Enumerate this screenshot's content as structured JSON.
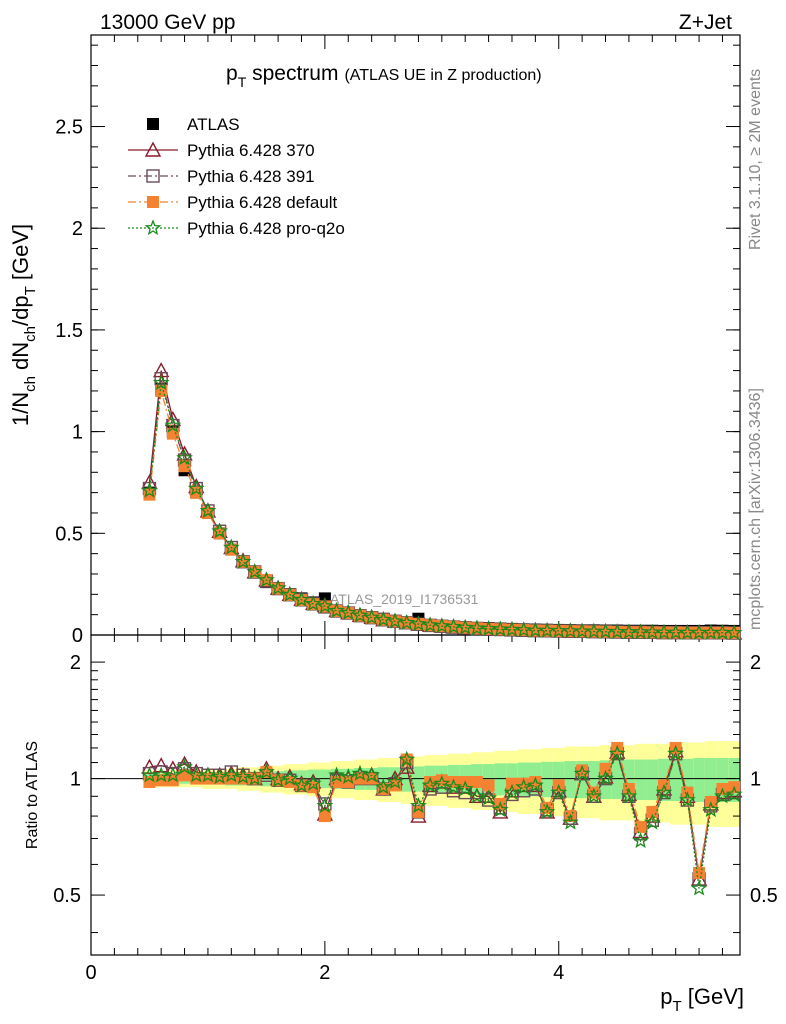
{
  "header": {
    "left": "13000 GeV pp",
    "right": "Z+Jet"
  },
  "title": {
    "main_p": "p",
    "main_sub": "T",
    "main_rest": " spectrum",
    "extra": "(ATLAS UE in Z production)"
  },
  "side_labels": {
    "rivet": "Rivet 3.1.10, ≥ 2M events",
    "mcplots": "mcplots.cern.ch [arXiv:1306.3436]"
  },
  "watermark": "ATLAS_2019_I1736531",
  "ylabel_top": {
    "a": "1/N",
    "a_sub": "ch",
    "b": " dN",
    "b_sub": "ch",
    "c": "/dp",
    "c_sub": "T",
    "d": " [GeV]"
  },
  "ylabel_bottom": "Ratio to ATLAS",
  "xlabel": {
    "p": "p",
    "sub": "T",
    "rest": " [GeV]"
  },
  "legend": [
    {
      "label": "ATLAS",
      "color": "#000000",
      "marker": "square-filled",
      "line": "none"
    },
    {
      "label": "Pythia 6.428 370",
      "color": "#8b1a2b",
      "marker": "triangle-open",
      "line": "solid"
    },
    {
      "label": "Pythia 6.428 391",
      "color": "#6b4a5a",
      "marker": "square-open",
      "line": "dashdot"
    },
    {
      "label": "Pythia 6.428 default",
      "color": "#f58231",
      "marker": "square-filled",
      "line": "dashdot"
    },
    {
      "label": "Pythia 6.428 pro-q2o",
      "color": "#1a8a1a",
      "marker": "star-open",
      "line": "dotted"
    }
  ],
  "chart_data": [
    {
      "type": "scatter",
      "panel": "main",
      "title": "pT spectrum (ATLAS UE in Z production)",
      "xlabel": "pT [GeV]",
      "ylabel": "1/Nch dNch/dpT [GeV]",
      "xlim": [
        0,
        5.55
      ],
      "ylim": [
        0,
        2.95
      ],
      "yticks": [
        0,
        0.5,
        1,
        1.5,
        2,
        2.5
      ],
      "ytick_labels": [
        "0",
        "0.5",
        "1",
        "1.5",
        "2",
        "2.5"
      ],
      "x": [
        0.5,
        0.6,
        0.7,
        0.8,
        0.9,
        1.0,
        1.1,
        1.2,
        1.3,
        1.4,
        1.5,
        1.6,
        1.7,
        1.8,
        1.9,
        2.0,
        2.1,
        2.2,
        2.3,
        2.4,
        2.5,
        2.6,
        2.7,
        2.8,
        2.9,
        3.0,
        3.1,
        3.2,
        3.3,
        3.4,
        3.5,
        3.6,
        3.7,
        3.8,
        3.9,
        4.0,
        4.1,
        4.2,
        4.3,
        4.4,
        4.5,
        4.6,
        4.7,
        4.8,
        4.9,
        5.0,
        5.1,
        5.2,
        5.3,
        5.4,
        5.5
      ],
      "series": [
        {
          "name": "ATLAS",
          "values": [
            0.7,
            1.21,
            1.0,
            0.81,
            0.7,
            0.6,
            0.5,
            0.42,
            0.36,
            0.31,
            0.26,
            0.23,
            0.2,
            0.18,
            0.16,
            0.18,
            0.12,
            0.11,
            0.095,
            0.085,
            0.08,
            0.07,
            0.06,
            0.08,
            0.05,
            0.045,
            0.042,
            0.038,
            0.035,
            0.034,
            0.032,
            0.03,
            0.028,
            0.027,
            0.026,
            0.025,
            0.024,
            0.023,
            0.023,
            0.022,
            0.022,
            0.021,
            0.021,
            0.021,
            0.02,
            0.02,
            0.02,
            0.02,
            0.022,
            0.021,
            0.02
          ]
        },
        {
          "name": "Pythia 6.428 370",
          "values": [
            0.75,
            1.3,
            1.06,
            0.89,
            0.73,
            0.61,
            0.51,
            0.43,
            0.365,
            0.31,
            0.27,
            0.23,
            0.2,
            0.175,
            0.155,
            0.145,
            0.12,
            0.11,
            0.097,
            0.087,
            0.075,
            0.068,
            0.06,
            0.054,
            0.048,
            0.044,
            0.04,
            0.036,
            0.033,
            0.03,
            0.028,
            0.026,
            0.024,
            0.022,
            0.021,
            0.02,
            0.019,
            0.018,
            0.017,
            0.016,
            0.015,
            0.014,
            0.014,
            0.013,
            0.012,
            0.012,
            0.011,
            0.011,
            0.011,
            0.011,
            0.01
          ]
        },
        {
          "name": "Pythia 6.428 391",
          "values": [
            0.72,
            1.26,
            1.03,
            0.86,
            0.72,
            0.61,
            0.51,
            0.43,
            0.36,
            0.31,
            0.265,
            0.228,
            0.198,
            0.173,
            0.153,
            0.138,
            0.118,
            0.108,
            0.095,
            0.085,
            0.075,
            0.067,
            0.06,
            0.053,
            0.047,
            0.043,
            0.039,
            0.035,
            0.032,
            0.029,
            0.027,
            0.025,
            0.023,
            0.022,
            0.021,
            0.02,
            0.019,
            0.018,
            0.017,
            0.016,
            0.015,
            0.014,
            0.014,
            0.013,
            0.012,
            0.012,
            0.011,
            0.011,
            0.011,
            0.011,
            0.01
          ]
        },
        {
          "name": "Pythia 6.428 default",
          "values": [
            0.69,
            1.2,
            0.99,
            0.83,
            0.7,
            0.6,
            0.5,
            0.42,
            0.36,
            0.31,
            0.27,
            0.228,
            0.197,
            0.172,
            0.152,
            0.14,
            0.118,
            0.108,
            0.095,
            0.085,
            0.075,
            0.067,
            0.06,
            0.054,
            0.048,
            0.044,
            0.04,
            0.036,
            0.033,
            0.03,
            0.028,
            0.026,
            0.024,
            0.022,
            0.021,
            0.02,
            0.019,
            0.018,
            0.017,
            0.016,
            0.015,
            0.014,
            0.014,
            0.013,
            0.012,
            0.012,
            0.011,
            0.011,
            0.011,
            0.011,
            0.01
          ]
        },
        {
          "name": "Pythia 6.428 pro-q2o",
          "values": [
            0.71,
            1.24,
            1.03,
            0.87,
            0.72,
            0.61,
            0.51,
            0.43,
            0.36,
            0.31,
            0.27,
            0.23,
            0.198,
            0.173,
            0.153,
            0.142,
            0.119,
            0.109,
            0.096,
            0.086,
            0.075,
            0.067,
            0.06,
            0.054,
            0.048,
            0.044,
            0.04,
            0.036,
            0.033,
            0.03,
            0.028,
            0.026,
            0.024,
            0.022,
            0.021,
            0.02,
            0.019,
            0.018,
            0.017,
            0.016,
            0.015,
            0.014,
            0.014,
            0.013,
            0.012,
            0.012,
            0.011,
            0.011,
            0.011,
            0.011,
            0.01
          ]
        }
      ]
    },
    {
      "type": "scatter",
      "panel": "ratio",
      "xlabel": "pT [GeV]",
      "ylabel": "Ratio to ATLAS",
      "xlim": [
        0,
        5.55
      ],
      "ylim": [
        0.35,
        2.35
      ],
      "yticks": [
        0.5,
        1,
        2
      ],
      "ytick_labels": [
        "0.5",
        "1",
        "2"
      ],
      "xticks": [
        0,
        2,
        4
      ],
      "xtick_labels": [
        "0",
        "2",
        "4"
      ],
      "bands": {
        "x": [
          0.5,
          0.6,
          0.7,
          0.8,
          0.9,
          1.0,
          1.1,
          1.2,
          1.3,
          1.4,
          1.5,
          1.6,
          1.7,
          1.8,
          1.9,
          2.0,
          2.1,
          2.2,
          2.3,
          2.4,
          2.5,
          2.6,
          2.7,
          2.8,
          2.9,
          3.0,
          3.1,
          3.2,
          3.3,
          3.4,
          3.5,
          3.6,
          3.7,
          3.8,
          3.9,
          4.0,
          4.1,
          4.2,
          4.3,
          4.4,
          4.5,
          4.6,
          4.7,
          4.8,
          4.9,
          5.0,
          5.1,
          5.2,
          5.3,
          5.4,
          5.5
        ],
        "inner_halfwidth": [
          0.03,
          0.03,
          0.03,
          0.03,
          0.03,
          0.035,
          0.035,
          0.04,
          0.04,
          0.04,
          0.045,
          0.045,
          0.05,
          0.05,
          0.055,
          0.055,
          0.06,
          0.06,
          0.065,
          0.065,
          0.07,
          0.07,
          0.075,
          0.075,
          0.08,
          0.08,
          0.085,
          0.085,
          0.09,
          0.09,
          0.095,
          0.095,
          0.1,
          0.1,
          0.105,
          0.105,
          0.11,
          0.11,
          0.11,
          0.115,
          0.115,
          0.12,
          0.12,
          0.12,
          0.125,
          0.125,
          0.125,
          0.13,
          0.13,
          0.13,
          0.13
        ],
        "outer_halfwidth": [
          0.05,
          0.05,
          0.05,
          0.05,
          0.05,
          0.06,
          0.06,
          0.06,
          0.07,
          0.07,
          0.08,
          0.08,
          0.09,
          0.09,
          0.1,
          0.1,
          0.11,
          0.11,
          0.12,
          0.12,
          0.13,
          0.13,
          0.14,
          0.14,
          0.15,
          0.15,
          0.16,
          0.16,
          0.17,
          0.17,
          0.18,
          0.18,
          0.19,
          0.19,
          0.2,
          0.2,
          0.21,
          0.21,
          0.21,
          0.22,
          0.22,
          0.22,
          0.23,
          0.23,
          0.23,
          0.24,
          0.24,
          0.24,
          0.25,
          0.25,
          0.25
        ],
        "inner_color": "#90ee90",
        "outer_color": "#ffff99"
      },
      "series": [
        {
          "name": "Pythia 6.428 370",
          "values": [
            1.07,
            1.08,
            1.06,
            1.09,
            1.04,
            1.02,
            1.02,
            1.03,
            1.02,
            1.0,
            1.06,
            1.0,
            1.01,
            0.97,
            0.98,
            0.81,
            1.0,
            1.0,
            1.02,
            1.02,
            0.94,
            1.0,
            1.07,
            0.8,
            0.96,
            0.98,
            0.95,
            0.95,
            0.9,
            0.9,
            0.82,
            0.93,
            0.96,
            0.96,
            0.82,
            0.93,
            0.79,
            1.03,
            0.9,
            1.01,
            1.17,
            0.91,
            0.73,
            0.8,
            0.94,
            1.18,
            0.9,
            0.55,
            0.86,
            0.92,
            0.93
          ]
        },
        {
          "name": "Pythia 6.428 391",
          "values": [
            1.03,
            1.04,
            1.03,
            1.06,
            1.03,
            1.02,
            1.02,
            1.04,
            1.02,
            1.0,
            1.02,
            0.99,
            0.99,
            0.96,
            0.96,
            0.86,
            0.99,
            0.98,
            1.0,
            1.0,
            0.94,
            0.97,
            1.1,
            0.82,
            0.94,
            0.95,
            0.93,
            0.92,
            0.92,
            0.88,
            0.84,
            0.91,
            0.93,
            0.94,
            0.83,
            0.92,
            0.79,
            1.03,
            0.9,
            1.0,
            1.16,
            0.9,
            0.72,
            0.78,
            0.92,
            1.16,
            0.88,
            0.55,
            0.85,
            0.91,
            0.92
          ]
        },
        {
          "name": "Pythia 6.428 default",
          "values": [
            0.98,
            0.99,
            0.99,
            1.02,
            1.0,
            1.0,
            1.0,
            1.0,
            1.0,
            1.0,
            1.04,
            0.99,
            0.98,
            0.96,
            0.95,
            0.8,
            0.98,
            0.98,
            1.0,
            1.0,
            0.94,
            0.96,
            1.12,
            0.82,
            0.98,
            0.99,
            0.98,
            0.98,
            0.98,
            0.96,
            0.86,
            0.97,
            0.97,
            0.98,
            0.84,
            0.96,
            0.8,
            1.05,
            0.92,
            1.06,
            1.2,
            0.94,
            0.75,
            0.82,
            0.96,
            1.2,
            0.92,
            0.57,
            0.87,
            0.94,
            0.95
          ]
        },
        {
          "name": "Pythia 6.428 pro-q2o",
          "values": [
            1.02,
            1.02,
            1.02,
            1.07,
            1.02,
            1.02,
            1.01,
            1.02,
            1.01,
            1.0,
            1.04,
            0.99,
            1.0,
            0.96,
            0.97,
            0.85,
            1.02,
            1.01,
            1.03,
            1.02,
            0.95,
            0.98,
            1.12,
            0.85,
            0.96,
            0.97,
            0.95,
            0.94,
            0.9,
            0.89,
            0.83,
            0.92,
            0.95,
            0.96,
            0.82,
            0.92,
            0.77,
            1.03,
            0.9,
            1.0,
            1.16,
            0.9,
            0.69,
            0.77,
            0.92,
            1.16,
            0.88,
            0.52,
            0.83,
            0.9,
            0.91
          ]
        }
      ]
    }
  ]
}
